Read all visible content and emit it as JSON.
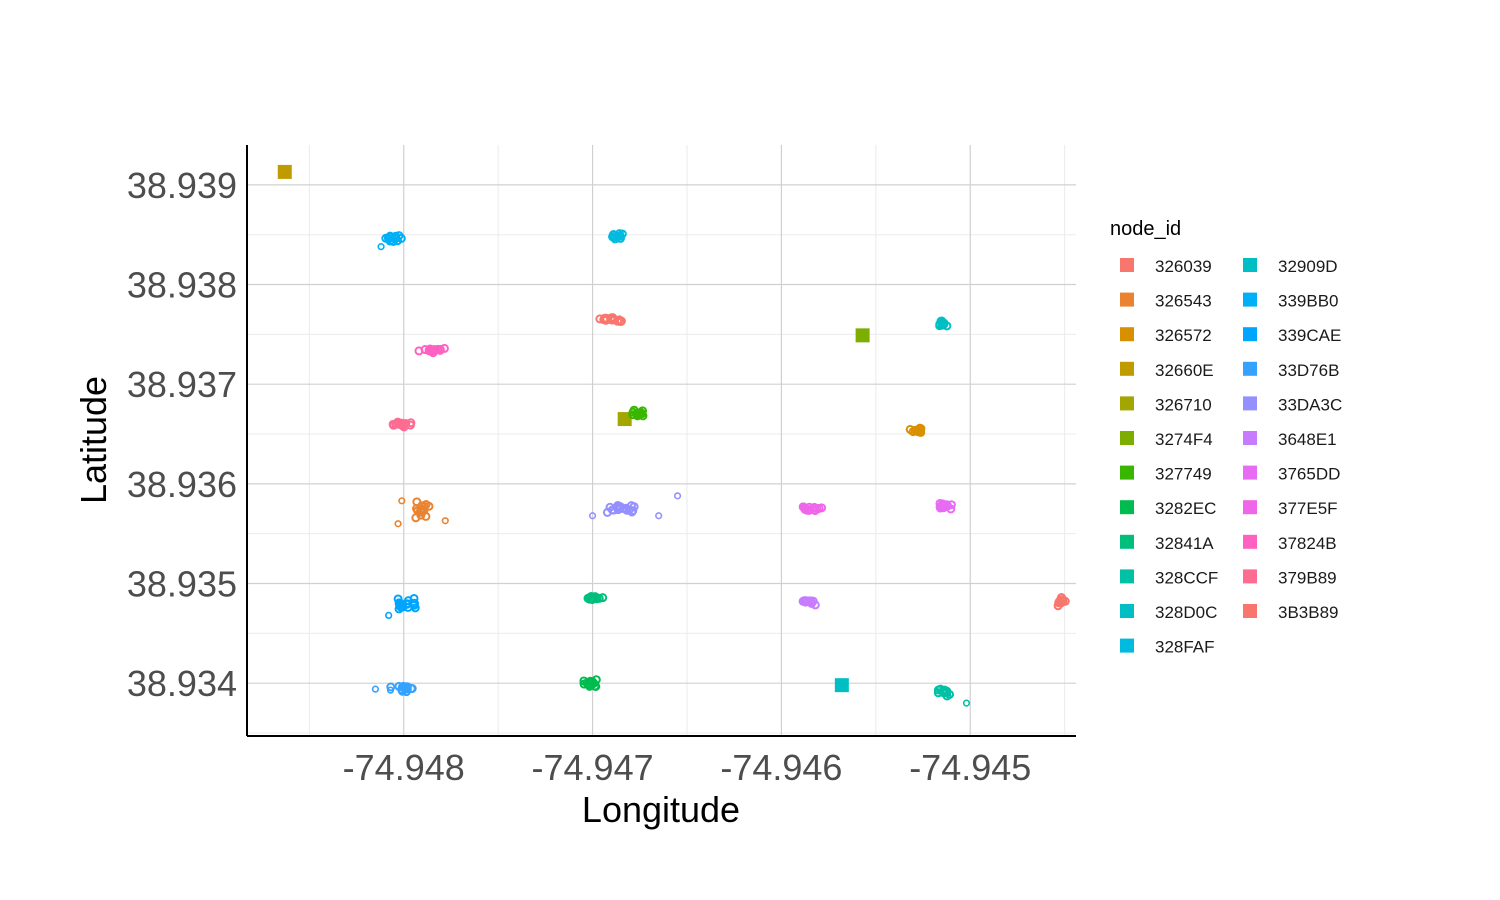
{
  "chart_data": {
    "type": "scatter",
    "title": "",
    "xlabel": "Longitude",
    "ylabel": "Latitude",
    "xlim": [
      -74.94883,
      -74.94444
    ],
    "ylim": [
      38.93347,
      38.9394
    ],
    "x_ticks": [
      "-74.948",
      "-74.947",
      "-74.946",
      "-74.945"
    ],
    "x_tick_values": [
      -74.948,
      -74.947,
      -74.946,
      -74.945
    ],
    "y_ticks": [
      "38.934",
      "38.935",
      "38.936",
      "38.937",
      "38.938",
      "38.939"
    ],
    "y_tick_values": [
      38.934,
      38.935,
      38.936,
      38.937,
      38.938,
      38.939
    ],
    "grid": true,
    "legend": {
      "title": "node_id",
      "position": "right",
      "columns": 2
    },
    "series": [
      {
        "name": "326039",
        "color": "#F8766D",
        "shape": "circle",
        "x": -74.94452,
        "y": 38.93482,
        "spread": [
          5e-05,
          7e-05
        ],
        "n": 12
      },
      {
        "name": "326543",
        "color": "#EA8331",
        "shape": "circle",
        "x": -74.9479,
        "y": 38.93573,
        "spread": [
          0.0001,
          0.00012
        ],
        "n": 16
      },
      {
        "name": "326572",
        "color": "#D89000",
        "shape": "circle",
        "x": -74.94528,
        "y": 38.93653,
        "spread": [
          6e-05,
          5e-05
        ],
        "n": 14
      },
      {
        "name": "32660E",
        "color": "#C09B00",
        "shape": "square",
        "x": -74.94863,
        "y": 38.93913
      },
      {
        "name": "326710",
        "color": "#A3A500",
        "shape": "square",
        "x": -74.94683,
        "y": 38.93665
      },
      {
        "name": "3274F4",
        "color": "#7CAE00",
        "shape": "square",
        "x": -74.94557,
        "y": 38.93749
      },
      {
        "name": "327749",
        "color": "#39B600",
        "shape": "circle",
        "x": -74.94677,
        "y": 38.93671,
        "spread": [
          6e-05,
          4e-05
        ],
        "n": 14
      },
      {
        "name": "3282EC",
        "color": "#00BB4E",
        "shape": "circle",
        "x": -74.947,
        "y": 38.934,
        "spread": [
          6e-05,
          5e-05
        ],
        "n": 14
      },
      {
        "name": "32841A",
        "color": "#00BF7D",
        "shape": "circle",
        "x": -74.947,
        "y": 38.93486,
        "spread": [
          6e-05,
          4e-05
        ],
        "n": 14
      },
      {
        "name": "328CCF",
        "color": "#00C1A3",
        "shape": "circle",
        "x": -74.94513,
        "y": 38.9339,
        "spread": [
          6e-05,
          5e-05
        ],
        "n": 14
      },
      {
        "name": "328D0C",
        "color": "#00BFC4",
        "shape": "circle",
        "x": -74.94515,
        "y": 38.9376,
        "spread": [
          4e-05,
          5e-05
        ],
        "n": 12
      },
      {
        "name": "328FAF",
        "color": "#00BAE0",
        "shape": "circle",
        "x": -74.94688,
        "y": 38.93849,
        "spread": [
          5e-05,
          4e-05
        ],
        "n": 12
      },
      {
        "name": "32909D",
        "color": "#00BFC4",
        "shape": "square",
        "x": -74.94568,
        "y": 38.93398
      },
      {
        "name": "339BB0",
        "color": "#00B0F6",
        "shape": "circle",
        "x": -74.94805,
        "y": 38.93847,
        "spread": [
          8e-05,
          4e-05
        ],
        "n": 14
      },
      {
        "name": "339CAE",
        "color": "#00A5FF",
        "shape": "circle",
        "x": -74.948,
        "y": 38.9348,
        "spread": [
          8e-05,
          8e-05
        ],
        "n": 18
      },
      {
        "name": "33D76B",
        "color": "#35A2FF",
        "shape": "circle",
        "x": -74.948,
        "y": 38.93395,
        "spread": [
          9e-05,
          6e-05
        ],
        "n": 16
      },
      {
        "name": "33DA3C",
        "color": "#9590FF",
        "shape": "circle",
        "x": -74.94685,
        "y": 38.93575,
        "spread": [
          0.00012,
          6e-05
        ],
        "n": 18
      },
      {
        "name": "3648E1",
        "color": "#C77CFF",
        "shape": "circle",
        "x": -74.94585,
        "y": 38.93482,
        "spread": [
          6e-05,
          4e-05
        ],
        "n": 14
      },
      {
        "name": "3765DD",
        "color": "#E76BF3",
        "shape": "circle",
        "x": -74.94513,
        "y": 38.93578,
        "spread": [
          8e-05,
          4e-05
        ],
        "n": 14
      },
      {
        "name": "377E5F",
        "color": "#F066EA",
        "shape": "circle",
        "x": -74.94585,
        "y": 38.93575,
        "spread": [
          8e-05,
          5e-05
        ],
        "n": 16
      },
      {
        "name": "37824B",
        "color": "#FF61C3",
        "shape": "circle",
        "x": -74.94785,
        "y": 38.93734,
        "spread": [
          8e-05,
          4e-05
        ],
        "n": 16
      },
      {
        "name": "379B89",
        "color": "#FF6C91",
        "shape": "circle",
        "x": -74.948,
        "y": 38.9366,
        "spread": [
          8e-05,
          4e-05
        ],
        "n": 16
      },
      {
        "name": "3B3B89",
        "color": "#F8766D",
        "shape": "circle",
        "x": -74.9469,
        "y": 38.93765,
        "spread": [
          9e-05,
          4e-05
        ],
        "n": 16
      }
    ],
    "outliers": [
      {
        "series": "33DA3C",
        "x": -74.94655,
        "y": 38.93588
      },
      {
        "series": "33DA3C",
        "x": -74.947,
        "y": 38.93568
      },
      {
        "series": "33DA3C",
        "x": -74.94665,
        "y": 38.93568
      },
      {
        "series": "326543",
        "x": -74.94778,
        "y": 38.93563
      },
      {
        "series": "326543",
        "x": -74.94803,
        "y": 38.9356
      },
      {
        "series": "326543",
        "x": -74.94801,
        "y": 38.93583
      },
      {
        "series": "33D76B",
        "x": -74.94815,
        "y": 38.93394
      },
      {
        "series": "33D76B",
        "x": -74.94807,
        "y": 38.93393
      },
      {
        "series": "328CCF",
        "x": -74.94502,
        "y": 38.9338
      },
      {
        "series": "339CAE",
        "x": -74.94808,
        "y": 38.93468
      },
      {
        "series": "339BB0",
        "x": -74.94812,
        "y": 38.93838
      }
    ]
  }
}
